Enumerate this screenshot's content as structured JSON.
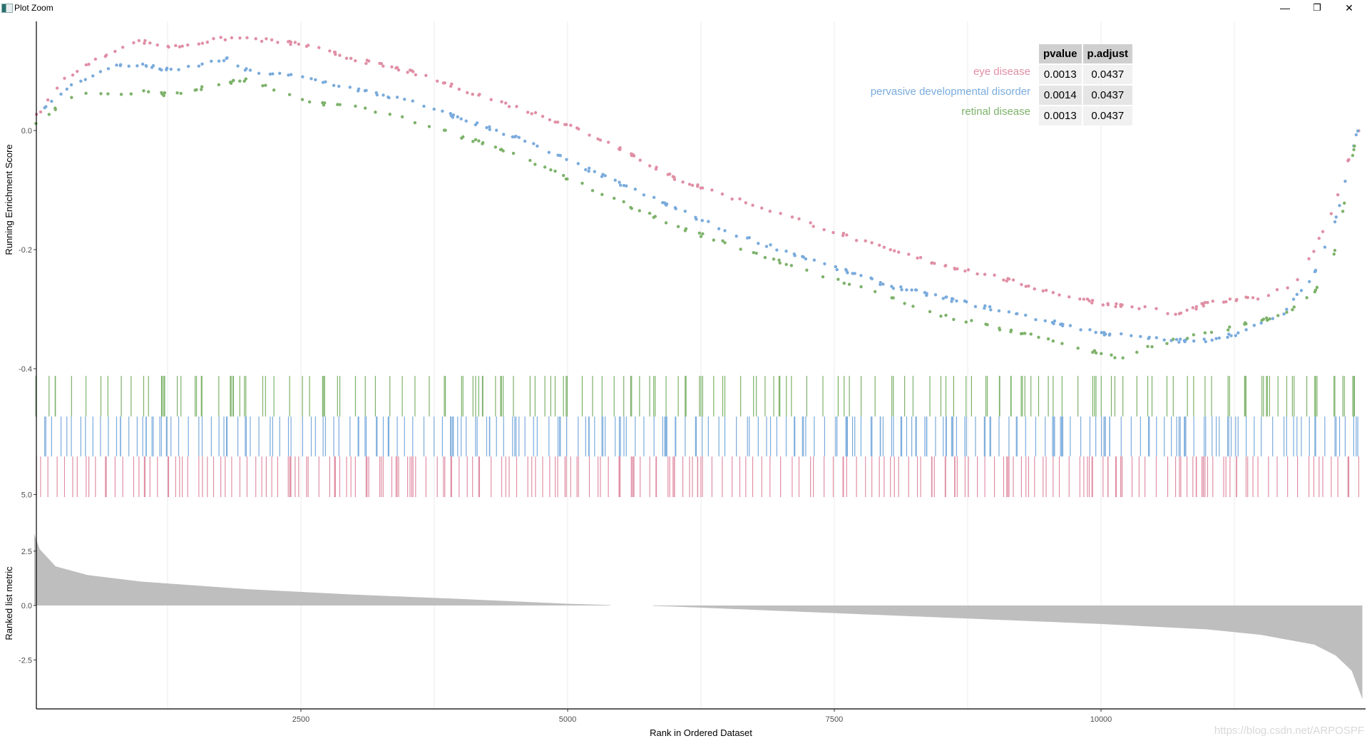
{
  "window": {
    "title": "Plot Zoom",
    "controls": {
      "minimize": "—",
      "restore": "❐",
      "close": "✕"
    }
  },
  "watermark": "https://blog.csdn.net/ARPOSPF",
  "legend_table": {
    "headers": [
      "pvalue",
      "p.adjust"
    ],
    "rows": [
      {
        "label": "eye disease",
        "color": "#E08FA5",
        "pvalue": "0.0013",
        "padjust": "0.0437"
      },
      {
        "label": "pervasive developmental disorder",
        "color": "#7AABDC",
        "pvalue": "0.0014",
        "padjust": "0.0437"
      },
      {
        "label": "retinal disease",
        "color": "#7DB26A",
        "pvalue": "0.0013",
        "padjust": "0.0437"
      }
    ]
  },
  "chart_data": [
    {
      "type": "scatter",
      "panel": "running-enrichment-score",
      "ylabel": "Running Enrichment Score",
      "yticks": [
        0.0,
        -0.2,
        -0.4
      ],
      "ytick_labels": [
        "0.0",
        "-0.2",
        "-0.4"
      ],
      "ylim": [
        -0.4,
        0.18
      ],
      "grid": true,
      "series": [
        {
          "name": "eye disease",
          "color": "#E08FA5",
          "x": [
            0,
            300,
            500,
            800,
            1000,
            1300,
            1800,
            2000,
            2500,
            3000,
            3500,
            4000,
            4500,
            5000,
            5500,
            6000,
            6500,
            7000,
            7500,
            8000,
            8500,
            9000,
            9500,
            10000,
            10500,
            10700,
            11000,
            11500,
            11800,
            12000,
            12200,
            12400
          ],
          "y": [
            0.02,
            0.09,
            0.11,
            0.14,
            0.15,
            0.14,
            0.155,
            0.155,
            0.145,
            0.12,
            0.1,
            0.07,
            0.04,
            0.01,
            -0.03,
            -0.08,
            -0.11,
            -0.14,
            -0.17,
            -0.2,
            -0.225,
            -0.245,
            -0.27,
            -0.29,
            -0.3,
            -0.31,
            -0.29,
            -0.28,
            -0.26,
            -0.2,
            -0.12,
            0.0
          ]
        },
        {
          "name": "pervasive developmental disorder",
          "color": "#7AABDC",
          "x": [
            0,
            300,
            500,
            800,
            1000,
            1300,
            1800,
            2000,
            2500,
            3000,
            3500,
            4000,
            4500,
            5000,
            5500,
            6000,
            6500,
            7000,
            7500,
            8000,
            8500,
            9000,
            9500,
            10000,
            10500,
            10900,
            11300,
            11700,
            12000,
            12200,
            12400
          ],
          "y": [
            0.02,
            0.07,
            0.09,
            0.11,
            0.11,
            0.1,
            0.12,
            0.1,
            0.09,
            0.07,
            0.05,
            0.02,
            -0.01,
            -0.05,
            -0.09,
            -0.13,
            -0.17,
            -0.2,
            -0.23,
            -0.26,
            -0.28,
            -0.3,
            -0.32,
            -0.34,
            -0.35,
            -0.355,
            -0.34,
            -0.31,
            -0.24,
            -0.15,
            0.0
          ]
        },
        {
          "name": "retinal disease",
          "color": "#7DB26A",
          "x": [
            0,
            300,
            500,
            800,
            1000,
            1300,
            1800,
            2000,
            2500,
            3000,
            3500,
            4000,
            4500,
            5000,
            5500,
            6000,
            6500,
            7000,
            7500,
            8000,
            8500,
            9000,
            9500,
            10000,
            10200,
            10500,
            11000,
            11500,
            11800,
            12000,
            12200,
            12400
          ],
          "y": [
            0.01,
            0.05,
            0.065,
            0.06,
            0.065,
            0.06,
            0.08,
            0.085,
            0.05,
            0.04,
            0.02,
            -0.01,
            -0.04,
            -0.08,
            -0.12,
            -0.16,
            -0.19,
            -0.22,
            -0.25,
            -0.28,
            -0.31,
            -0.33,
            -0.35,
            -0.375,
            -0.385,
            -0.36,
            -0.34,
            -0.32,
            -0.3,
            -0.27,
            -0.2,
            0.0
          ]
        }
      ]
    },
    {
      "type": "table",
      "panel": "gene-set-rug",
      "rows": [
        "retinal disease",
        "pervasive developmental disorder",
        "eye disease"
      ],
      "description": "vertical tick marks showing positions of gene-set members along the ranked list"
    },
    {
      "type": "area",
      "panel": "ranked-list-metric",
      "ylabel": "Ranked list metric",
      "yticks": [
        5.0,
        2.5,
        0.0,
        -2.5
      ],
      "ytick_labels": [
        "5.0",
        "2.5",
        "0.0",
        "-2.5"
      ],
      "ylim": [
        -4.7,
        5.0
      ],
      "color": "#BEBEBE",
      "x": [
        0,
        50,
        200,
        500,
        1000,
        2000,
        3000,
        4000,
        5000,
        5400,
        5800,
        6000,
        7000,
        8000,
        9000,
        10000,
        11000,
        11500,
        12000,
        12200,
        12350,
        12450
      ],
      "y": [
        3.3,
        2.6,
        1.8,
        1.4,
        1.1,
        0.75,
        0.5,
        0.3,
        0.08,
        0.02,
        -0.02,
        -0.05,
        -0.25,
        -0.45,
        -0.65,
        -0.85,
        -1.1,
        -1.35,
        -1.8,
        -2.3,
        -3.0,
        -4.3
      ],
      "gap": [
        5400,
        5800
      ]
    }
  ],
  "x_axis": {
    "title": "Rank in Ordered Dataset",
    "ticks": [
      2500,
      5000,
      7500,
      10000
    ],
    "tick_labels": [
      "2500",
      "5000",
      "7500",
      "10000"
    ],
    "max_rank": 12450
  }
}
